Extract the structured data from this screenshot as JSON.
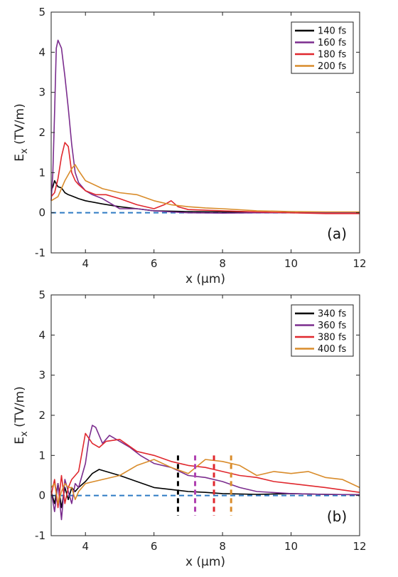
{
  "chart_data": [
    {
      "type": "line",
      "panel_label": "(a)",
      "xlabel": "x (μm)",
      "ylabel": "E_x (TV/m)",
      "xlim": [
        3,
        12
      ],
      "ylim": [
        -1,
        5
      ],
      "xticks": [
        4,
        6,
        8,
        10,
        12
      ],
      "yticks": [
        -1,
        0,
        1,
        2,
        3,
        4,
        5
      ],
      "grid": false,
      "legend_position": "top-right",
      "reference_line": {
        "y": 0,
        "style": "dashed",
        "color": "#2E7BC4"
      },
      "series": [
        {
          "name": "140 fs",
          "color": "#000000",
          "x": [
            3.0,
            3.05,
            3.1,
            3.15,
            3.2,
            3.3,
            3.4,
            3.5,
            3.6,
            3.8,
            4.0,
            4.5,
            5.0,
            5.5,
            6.0,
            7.0,
            8.0,
            9.0,
            10.0,
            11.0,
            12.0
          ],
          "y": [
            0.55,
            0.65,
            0.8,
            0.72,
            0.65,
            0.62,
            0.5,
            0.45,
            0.42,
            0.35,
            0.3,
            0.22,
            0.15,
            0.1,
            0.05,
            0.03,
            0.02,
            0.01,
            0.0,
            0.0,
            -0.01
          ]
        },
        {
          "name": "160 fs",
          "color": "#7B2D8E",
          "x": [
            3.0,
            3.05,
            3.1,
            3.15,
            3.2,
            3.3,
            3.4,
            3.5,
            3.6,
            3.7,
            3.8,
            4.0,
            4.2,
            4.5,
            4.8,
            5.0,
            5.5,
            6.0,
            6.5,
            7.0,
            8.0,
            9.0,
            10.0,
            11.0,
            12.0
          ],
          "y": [
            0.3,
            1.0,
            2.5,
            4.1,
            4.3,
            4.1,
            3.4,
            2.6,
            1.7,
            1.0,
            0.75,
            0.55,
            0.45,
            0.35,
            0.2,
            0.1,
            0.1,
            0.05,
            0.02,
            0.0,
            -0.01,
            0.0,
            0.0,
            0.0,
            0.0
          ]
        },
        {
          "name": "180 fs",
          "color": "#E0282E",
          "x": [
            3.0,
            3.1,
            3.2,
            3.3,
            3.4,
            3.5,
            3.6,
            3.7,
            3.8,
            4.0,
            4.3,
            4.6,
            5.0,
            5.5,
            6.0,
            6.3,
            6.5,
            6.7,
            7.0,
            8.0,
            9.0,
            10.0,
            11.0,
            12.0
          ],
          "y": [
            0.4,
            0.5,
            0.85,
            1.4,
            1.75,
            1.65,
            1.0,
            0.8,
            0.7,
            0.55,
            0.45,
            0.45,
            0.35,
            0.2,
            0.1,
            0.2,
            0.3,
            0.15,
            0.08,
            0.05,
            0.02,
            0.0,
            -0.02,
            -0.02
          ]
        },
        {
          "name": "200 fs",
          "color": "#D98C2B",
          "x": [
            3.0,
            3.2,
            3.4,
            3.5,
            3.6,
            3.7,
            3.8,
            4.0,
            4.5,
            5.0,
            5.5,
            6.0,
            6.5,
            7.0,
            7.5,
            8.0,
            9.0,
            10.0,
            11.0,
            12.0
          ],
          "y": [
            0.3,
            0.4,
            0.8,
            0.95,
            1.1,
            1.2,
            1.05,
            0.8,
            0.6,
            0.5,
            0.45,
            0.3,
            0.2,
            0.15,
            0.12,
            0.1,
            0.05,
            0.03,
            0.02,
            0.02
          ]
        }
      ]
    },
    {
      "type": "line",
      "panel_label": "(b)",
      "xlabel": "x (μm)",
      "ylabel": "E_x (TV/m)",
      "xlim": [
        3,
        12
      ],
      "ylim": [
        -1,
        5
      ],
      "xticks": [
        4,
        6,
        8,
        10,
        12
      ],
      "yticks": [
        -1,
        0,
        1,
        2,
        3,
        4,
        5
      ],
      "grid": false,
      "legend_position": "top-right",
      "reference_line": {
        "y": 0,
        "style": "dashed",
        "color": "#2E7BC4"
      },
      "markers": [
        {
          "x": 6.7,
          "color": "#000000",
          "y_range": [
            -0.5,
            1.0
          ]
        },
        {
          "x": 7.2,
          "color": "#B040B0",
          "y_range": [
            -0.5,
            1.0
          ]
        },
        {
          "x": 7.75,
          "color": "#E0282E",
          "y_range": [
            -0.5,
            1.0
          ]
        },
        {
          "x": 8.25,
          "color": "#D98C2B",
          "y_range": [
            -0.5,
            1.0
          ]
        }
      ],
      "series": [
        {
          "name": "340 fs",
          "color": "#000000",
          "x": [
            3.0,
            3.1,
            3.2,
            3.3,
            3.4,
            3.5,
            3.6,
            3.7,
            3.8,
            4.0,
            4.2,
            4.4,
            4.6,
            5.0,
            5.5,
            6.0,
            6.5,
            7.0,
            7.5,
            8.0,
            9.0,
            10.0,
            11.0,
            12.0
          ],
          "y": [
            0.1,
            -0.2,
            0.3,
            -0.3,
            0.2,
            -0.1,
            0.2,
            0.1,
            0.2,
            0.35,
            0.55,
            0.65,
            0.6,
            0.5,
            0.35,
            0.2,
            0.15,
            0.1,
            0.08,
            0.05,
            0.03,
            0.05,
            0.03,
            0.02
          ]
        },
        {
          "name": "360 fs",
          "color": "#7B2D8E",
          "x": [
            3.0,
            3.1,
            3.2,
            3.3,
            3.4,
            3.5,
            3.6,
            3.7,
            3.8,
            4.0,
            4.1,
            4.2,
            4.3,
            4.5,
            4.7,
            5.0,
            5.3,
            5.6,
            6.0,
            6.5,
            7.0,
            7.5,
            8.0,
            8.5,
            9.0,
            10.0,
            11.0,
            12.0
          ],
          "y": [
            0.1,
            -0.4,
            0.3,
            -0.6,
            0.4,
            0.1,
            -0.2,
            0.3,
            0.2,
            0.8,
            1.4,
            1.75,
            1.7,
            1.3,
            1.5,
            1.35,
            1.2,
            1.0,
            0.8,
            0.7,
            0.5,
            0.45,
            0.35,
            0.2,
            0.1,
            0.05,
            0.03,
            0.02
          ]
        },
        {
          "name": "380 fs",
          "color": "#E0282E",
          "x": [
            3.0,
            3.1,
            3.2,
            3.3,
            3.4,
            3.5,
            3.6,
            3.7,
            3.8,
            4.0,
            4.2,
            4.4,
            4.6,
            5.0,
            5.5,
            6.0,
            6.5,
            7.0,
            7.5,
            8.0,
            8.5,
            9.0,
            9.5,
            10.0,
            11.0,
            12.0
          ],
          "y": [
            0.0,
            0.4,
            -0.3,
            0.5,
            -0.2,
            0.2,
            0.4,
            0.5,
            0.6,
            1.55,
            1.3,
            1.2,
            1.35,
            1.4,
            1.1,
            1.0,
            0.85,
            0.75,
            0.7,
            0.6,
            0.5,
            0.45,
            0.35,
            0.3,
            0.2,
            0.08
          ]
        },
        {
          "name": "400 fs",
          "color": "#D98C2B",
          "x": [
            3.0,
            3.1,
            3.2,
            3.3,
            3.4,
            3.5,
            3.6,
            3.7,
            3.8,
            4.0,
            4.5,
            5.0,
            5.5,
            6.0,
            6.5,
            7.0,
            7.5,
            8.0,
            8.5,
            9.0,
            9.5,
            10.0,
            10.5,
            11.0,
            11.5,
            12.0
          ],
          "y": [
            0.2,
            0.3,
            -0.2,
            0.1,
            0.3,
            0.2,
            0.2,
            -0.1,
            0.1,
            0.3,
            0.4,
            0.5,
            0.75,
            0.9,
            0.7,
            0.55,
            0.9,
            0.85,
            0.75,
            0.5,
            0.6,
            0.55,
            0.6,
            0.45,
            0.4,
            0.2
          ]
        }
      ]
    }
  ]
}
